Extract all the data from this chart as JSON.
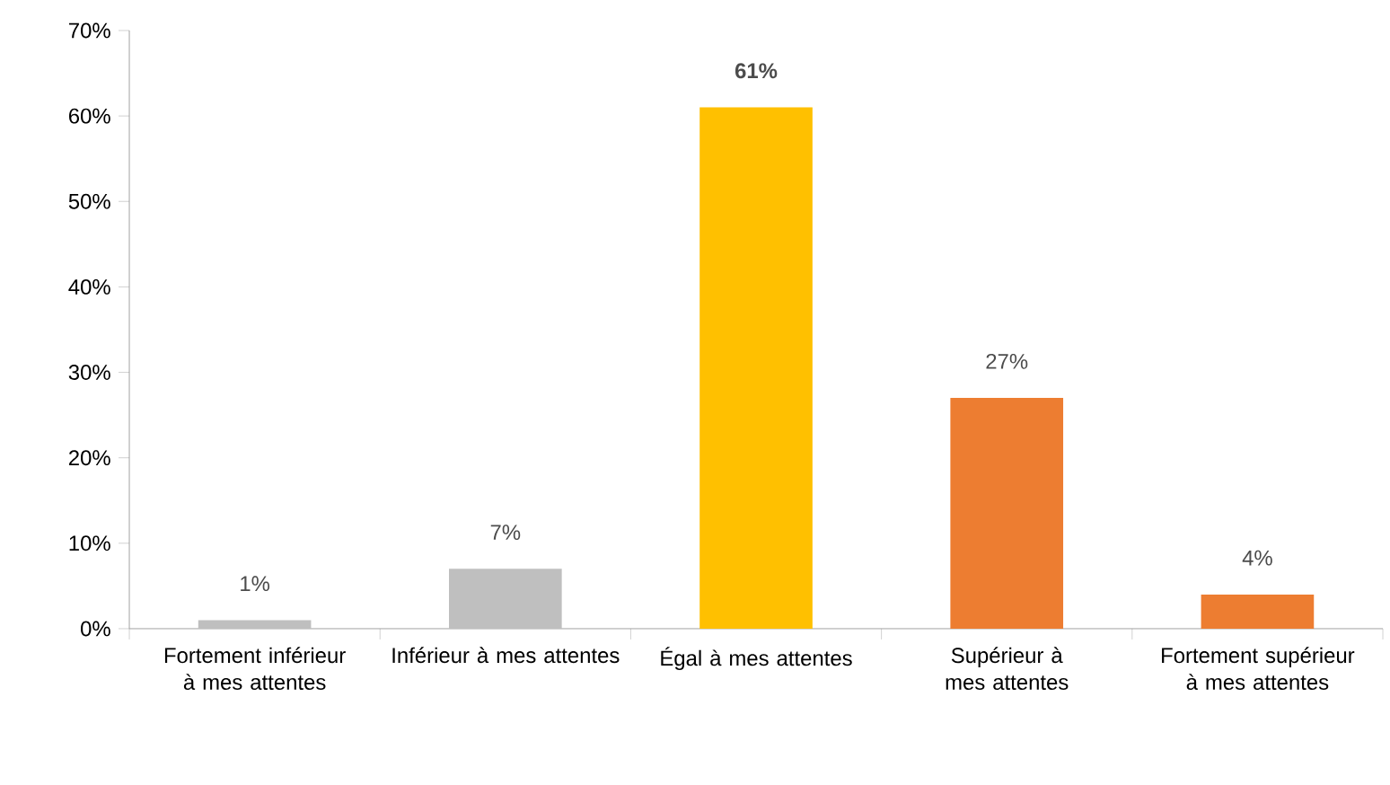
{
  "chart_data": {
    "type": "bar",
    "categories": [
      "Fortement inférieur à mes attentes",
      "Inférieur à mes attentes",
      "Égal à mes attentes",
      "Supérieur à mes attentes",
      "Fortement supérieur à mes attentes"
    ],
    "values": [
      1,
      7,
      61,
      27,
      4
    ],
    "colors": [
      "#bfbfbf",
      "#bfbfbf",
      "#ffc000",
      "#ed7d31",
      "#ed7d31"
    ],
    "value_labels": [
      "1%",
      "7%",
      "**61%**",
      "27%",
      "4%"
    ],
    "ylim": [
      0,
      70
    ],
    "yticks": [
      {
        "value": 0,
        "label": "0%"
      },
      {
        "value": 10,
        "label": "10%"
      },
      {
        "value": 20,
        "label": "20%"
      },
      {
        "value": 30,
        "label": "30%"
      },
      {
        "value": 40,
        "label": "40%"
      },
      {
        "value": 50,
        "label": "50%"
      },
      {
        "value": 60,
        "label": "60%"
      },
      {
        "value": 70,
        "label": "70%"
      }
    ]
  }
}
